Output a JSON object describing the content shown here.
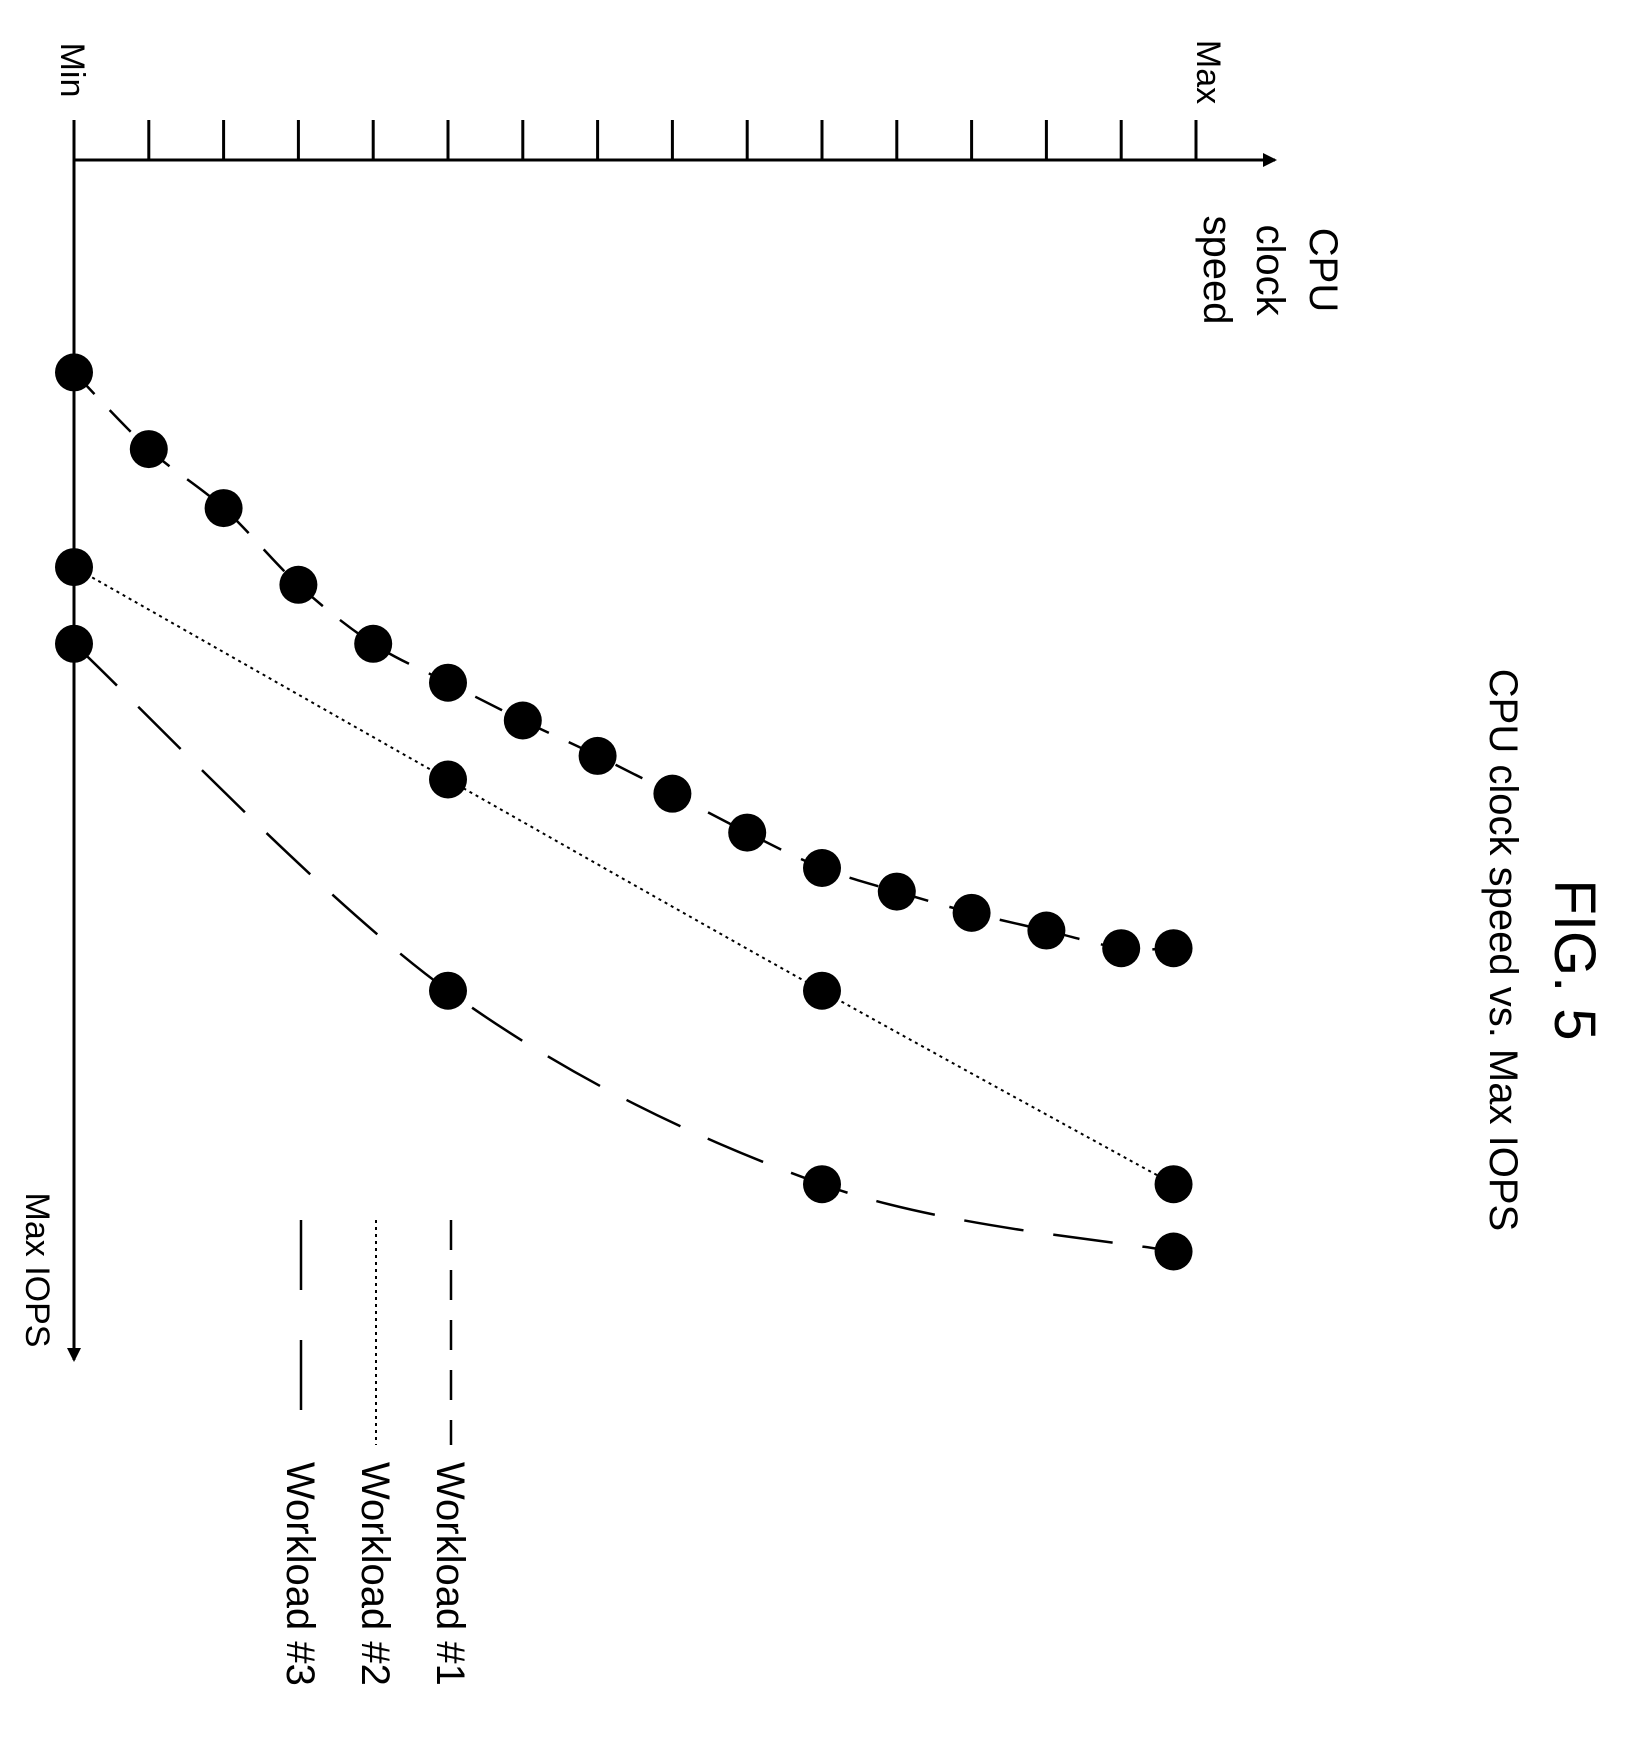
{
  "chart_data": {
    "type": "line",
    "title": "FIG. 5",
    "subtitle": "CPU clock speed vs. Max IOPS",
    "xlabel": "CPU clock speed",
    "ylabel": "Max IOPS",
    "x_tick_labels": [
      "Min",
      "Max"
    ],
    "xlim": [
      0,
      15
    ],
    "ylim": [
      0,
      1
    ],
    "grid": false,
    "legend_position": "bottom-right",
    "series": [
      {
        "name": "Workload #1",
        "line_style": "dashed",
        "x": [
          0,
          1,
          2,
          3,
          4,
          5,
          6,
          7,
          8,
          9,
          10,
          11,
          12,
          13,
          14,
          14.7
        ],
        "y": [
          0.18,
          0.245,
          0.295,
          0.36,
          0.41,
          0.443,
          0.475,
          0.505,
          0.537,
          0.57,
          0.6,
          0.62,
          0.638,
          0.653,
          0.668,
          0.668
        ]
      },
      {
        "name": "Workload #2",
        "line_style": "dotted",
        "x": [
          0,
          5,
          10,
          14.7
        ],
        "y": [
          0.345,
          0.525,
          0.704,
          0.868
        ]
      },
      {
        "name": "Workload #3",
        "line_style": "long-dashed",
        "x": [
          0,
          5,
          10,
          14.7
        ],
        "y": [
          0.41,
          0.704,
          0.868,
          0.925
        ]
      }
    ],
    "color": "#000000"
  }
}
